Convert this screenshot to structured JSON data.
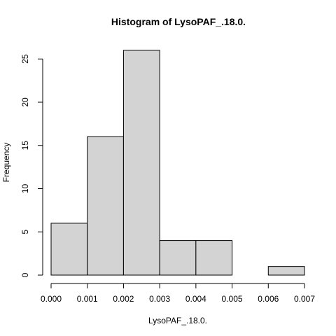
{
  "chart_data": {
    "type": "bar",
    "title": "Histogram of LysoPAF_.18.0.",
    "xlabel": "LysoPAF_.18.0.",
    "ylabel": "Frequency",
    "bins": [
      {
        "start": 0.0,
        "end": 0.001,
        "count": 6
      },
      {
        "start": 0.001,
        "end": 0.002,
        "count": 16
      },
      {
        "start": 0.002,
        "end": 0.003,
        "count": 26
      },
      {
        "start": 0.003,
        "end": 0.004,
        "count": 4
      },
      {
        "start": 0.004,
        "end": 0.005,
        "count": 4
      },
      {
        "start": 0.005,
        "end": 0.006,
        "count": 0
      },
      {
        "start": 0.006,
        "end": 0.007,
        "count": 1
      }
    ],
    "xlim": [
      0.0,
      0.007
    ],
    "ylim": [
      0,
      26
    ],
    "x_ticks": [
      0.0,
      0.001,
      0.002,
      0.003,
      0.004,
      0.005,
      0.006,
      0.007
    ],
    "x_tick_labels": [
      "0.000",
      "0.001",
      "0.002",
      "0.003",
      "0.004",
      "0.005",
      "0.006",
      "0.007"
    ],
    "y_ticks": [
      0,
      5,
      10,
      15,
      20,
      25
    ],
    "y_tick_labels": [
      "0",
      "5",
      "10",
      "15",
      "20",
      "25"
    ],
    "grid": false,
    "legend": "none"
  }
}
